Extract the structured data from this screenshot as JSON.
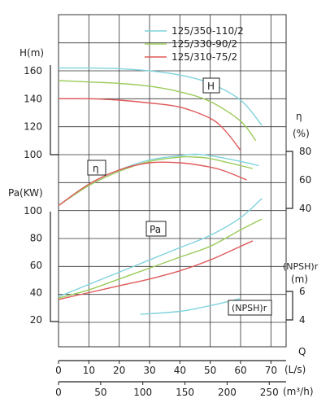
{
  "chart_data": {
    "type": "line",
    "legend": {
      "placement": "top-right",
      "entries": [
        {
          "name": "125/350-110/2",
          "color": "#7fd3dc"
        },
        {
          "name": "125/330-90/2",
          "color": "#9acb5a"
        },
        {
          "name": "125/310-75/2",
          "color": "#e05a5a"
        }
      ]
    },
    "x_axis": {
      "label": "Q",
      "unit_ls": "(L/s)",
      "ticks_ls": [
        0,
        10,
        20,
        30,
        40,
        50,
        60,
        70
      ],
      "unit_m3h": "(m³/h)",
      "ticks_m3h": [
        0,
        50,
        100,
        150,
        200,
        250
      ],
      "range_ls": [
        0,
        75
      ]
    },
    "axes": {
      "H": {
        "label": "H(m)",
        "ticks": [
          100,
          120,
          140,
          160
        ],
        "range": [
          100,
          170
        ]
      },
      "eta": {
        "label_top": "η",
        "label_unit": "(%)",
        "ticks": [
          40,
          60,
          80
        ],
        "range": [
          40,
          80
        ]
      },
      "Pa": {
        "label": "Pa(KW)",
        "ticks": [
          20,
          40,
          60,
          80,
          100
        ],
        "range": [
          10,
          110
        ]
      },
      "NPSHr": {
        "label_top": "(NPSH)r",
        "label_unit": "(m)",
        "ticks": [
          4,
          6
        ],
        "range": [
          4,
          6
        ]
      }
    },
    "curve_labels": {
      "H": "H",
      "eta": "η",
      "Pa": "Pa",
      "NPSHr": "(NPSH)r"
    },
    "grid": true,
    "series": [
      {
        "name": "125/350-110/2",
        "color": "#7fd3dc",
        "H": [
          [
            0,
            162
          ],
          [
            10,
            162
          ],
          [
            20,
            161.5
          ],
          [
            30,
            160
          ],
          [
            40,
            157
          ],
          [
            50,
            151
          ],
          [
            60,
            139
          ],
          [
            67,
            121
          ]
        ],
        "eta": [
          [
            0,
            42
          ],
          [
            10,
            57
          ],
          [
            20,
            67
          ],
          [
            30,
            74
          ],
          [
            40,
            77
          ],
          [
            45,
            78
          ],
          [
            50,
            77
          ],
          [
            60,
            73
          ],
          [
            66,
            70
          ]
        ],
        "Pa": [
          [
            0,
            37
          ],
          [
            10,
            46
          ],
          [
            20,
            55
          ],
          [
            30,
            64
          ],
          [
            40,
            73
          ],
          [
            50,
            82
          ],
          [
            60,
            95
          ],
          [
            67,
            109
          ]
        ],
        "NPSHr": [
          [
            27,
            4.4
          ],
          [
            40,
            4.6
          ],
          [
            50,
            5.0
          ],
          [
            60,
            5.5
          ]
        ]
      },
      {
        "name": "125/330-90/2",
        "color": "#9acb5a",
        "H": [
          [
            0,
            153
          ],
          [
            10,
            152
          ],
          [
            20,
            151
          ],
          [
            30,
            149
          ],
          [
            40,
            145
          ],
          [
            50,
            138
          ],
          [
            60,
            124
          ],
          [
            65,
            110
          ]
        ],
        "eta": [
          [
            0,
            42
          ],
          [
            10,
            56
          ],
          [
            20,
            66
          ],
          [
            30,
            73
          ],
          [
            40,
            76
          ],
          [
            45,
            76
          ],
          [
            50,
            75
          ],
          [
            60,
            70
          ],
          [
            64,
            68
          ]
        ],
        "Pa": [
          [
            0,
            36
          ],
          [
            10,
            42
          ],
          [
            20,
            50
          ],
          [
            30,
            58
          ],
          [
            40,
            66
          ],
          [
            50,
            74
          ],
          [
            60,
            86
          ],
          [
            67,
            94
          ]
        ]
      },
      {
        "name": "125/310-75/2",
        "color": "#e05a5a",
        "H": [
          [
            0,
            140
          ],
          [
            10,
            140
          ],
          [
            20,
            139
          ],
          [
            30,
            137
          ],
          [
            40,
            134
          ],
          [
            50,
            126
          ],
          [
            55,
            117
          ],
          [
            60,
            103
          ]
        ],
        "eta": [
          [
            0,
            42
          ],
          [
            10,
            57
          ],
          [
            20,
            67
          ],
          [
            30,
            72
          ],
          [
            40,
            72
          ],
          [
            50,
            69
          ],
          [
            55,
            66
          ],
          [
            62,
            60
          ]
        ],
        "Pa": [
          [
            0,
            35
          ],
          [
            10,
            40
          ],
          [
            20,
            45
          ],
          [
            30,
            50
          ],
          [
            40,
            56
          ],
          [
            50,
            64
          ],
          [
            60,
            74
          ],
          [
            64,
            78
          ]
        ]
      }
    ]
  }
}
